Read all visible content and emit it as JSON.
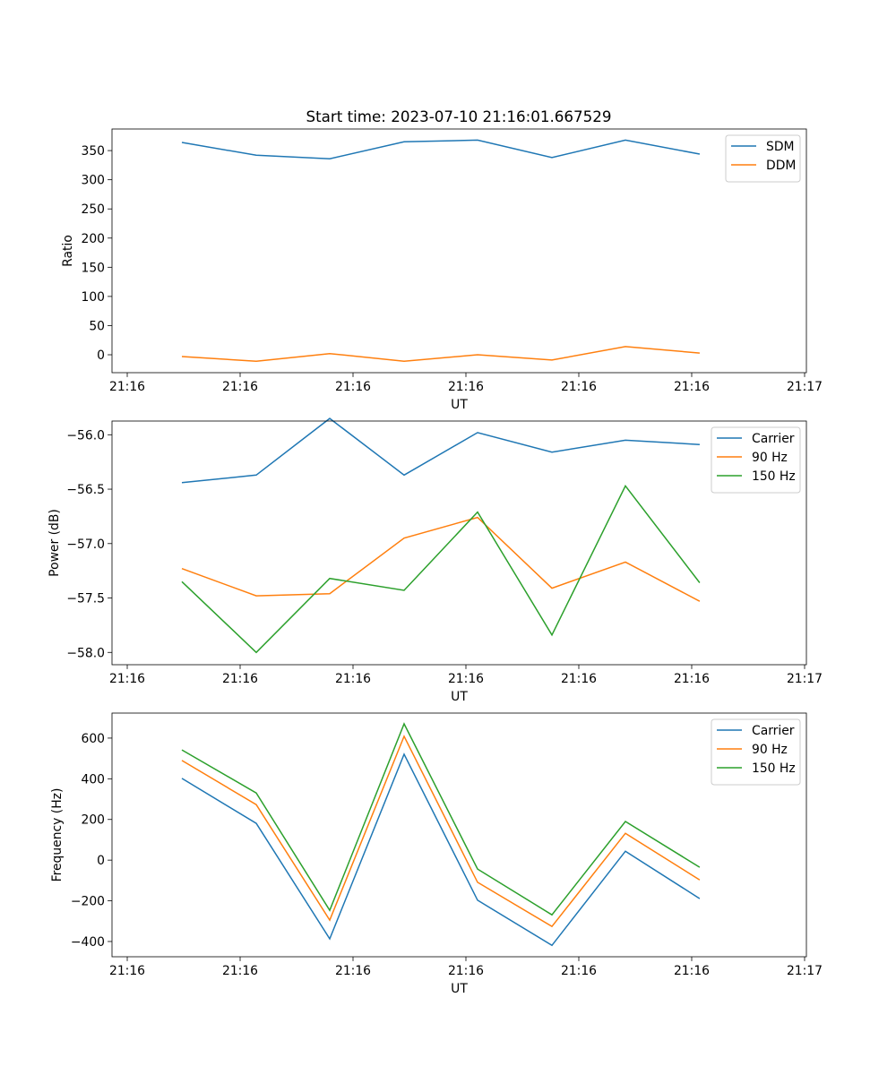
{
  "title": "Start time: 2023-07-10 21:16:01.667529",
  "colors": {
    "c0": "#1f77b4",
    "c1": "#ff7f0e",
    "c2": "#2ca02c"
  },
  "chart_data": [
    {
      "type": "line",
      "xlabel": "UT",
      "ylabel": "Ratio",
      "x_ticks": [
        0,
        1,
        2,
        3,
        4,
        5,
        6
      ],
      "x_tick_labels": [
        "21:16",
        "21:16",
        "21:16",
        "21:16",
        "21:16",
        "21:16",
        "21:17"
      ],
      "xlim": [
        -0.135,
        6.016
      ],
      "ylim": [
        -30.7,
        387
      ],
      "y_ticks": [
        0,
        50,
        100,
        150,
        200,
        250,
        300,
        350
      ],
      "y_tick_labels": [
        "0",
        "50",
        "100",
        "150",
        "200",
        "250",
        "300",
        "350"
      ],
      "legend": "top-right",
      "x": [
        0.484,
        1.143,
        1.794,
        2.452,
        3.103,
        3.762,
        4.413,
        5.071
      ],
      "series": [
        {
          "name": "SDM",
          "color": "#1f77b4",
          "values": [
            364,
            342,
            336,
            365,
            368,
            338,
            368,
            344
          ]
        },
        {
          "name": "DDM",
          "color": "#ff7f0e",
          "values": [
            -3,
            -11,
            2,
            -11,
            0,
            -9,
            14,
            3
          ]
        }
      ]
    },
    {
      "type": "line",
      "xlabel": "UT",
      "ylabel": "Power (dB)",
      "x_ticks": [
        0,
        1,
        2,
        3,
        4,
        5,
        6
      ],
      "x_tick_labels": [
        "21:16",
        "21:16",
        "21:16",
        "21:16",
        "21:16",
        "21:16",
        "21:17"
      ],
      "xlim": [
        -0.135,
        6.016
      ],
      "ylim": [
        -58.113,
        -55.874
      ],
      "y_ticks": [
        -58.0,
        -57.5,
        -57.0,
        -56.5,
        -56.0
      ],
      "y_tick_labels": [
        "−58.0",
        "−57.5",
        "−57.0",
        "−56.5",
        "−56.0"
      ],
      "legend": "top-right",
      "x": [
        0.484,
        1.143,
        1.794,
        2.452,
        3.103,
        3.762,
        4.413,
        5.071
      ],
      "series": [
        {
          "name": "Carrier",
          "color": "#1f77b4",
          "values": [
            -56.44,
            -56.37,
            -55.85,
            -56.37,
            -55.98,
            -56.16,
            -56.05,
            -56.09
          ]
        },
        {
          "name": "90 Hz",
          "color": "#ff7f0e",
          "values": [
            -57.23,
            -57.48,
            -57.46,
            -56.95,
            -56.76,
            -57.41,
            -57.17,
            -57.53
          ]
        },
        {
          "name": "150 Hz",
          "color": "#2ca02c",
          "values": [
            -57.35,
            -58.0,
            -57.32,
            -57.43,
            -56.71,
            -57.84,
            -56.47,
            -57.36
          ]
        }
      ]
    },
    {
      "type": "line",
      "xlabel": "UT",
      "ylabel": "Frequency (Hz)",
      "x_ticks": [
        0,
        1,
        2,
        3,
        4,
        5,
        6
      ],
      "x_tick_labels": [
        "21:16",
        "21:16",
        "21:16",
        "21:16",
        "21:16",
        "21:16",
        "21:17"
      ],
      "xlim": [
        -0.135,
        6.016
      ],
      "ylim": [
        -475,
        723
      ],
      "y_ticks": [
        -400,
        -200,
        0,
        200,
        400,
        600
      ],
      "y_tick_labels": [
        "−400",
        "−200",
        "0",
        "200",
        "400",
        "600"
      ],
      "legend": "top-right",
      "x": [
        0.484,
        1.143,
        1.794,
        2.452,
        3.103,
        3.762,
        4.413,
        5.071
      ],
      "series": [
        {
          "name": "Carrier",
          "color": "#1f77b4",
          "values": [
            402,
            181,
            -387,
            521,
            -197,
            -419,
            44,
            -189
          ]
        },
        {
          "name": "90 Hz",
          "color": "#ff7f0e",
          "values": [
            490,
            273,
            -295,
            609,
            -109,
            -326,
            132,
            -97
          ]
        },
        {
          "name": "150 Hz",
          "color": "#2ca02c",
          "values": [
            542,
            330,
            -247,
            670,
            -44,
            -269,
            190,
            -35
          ]
        }
      ]
    }
  ]
}
